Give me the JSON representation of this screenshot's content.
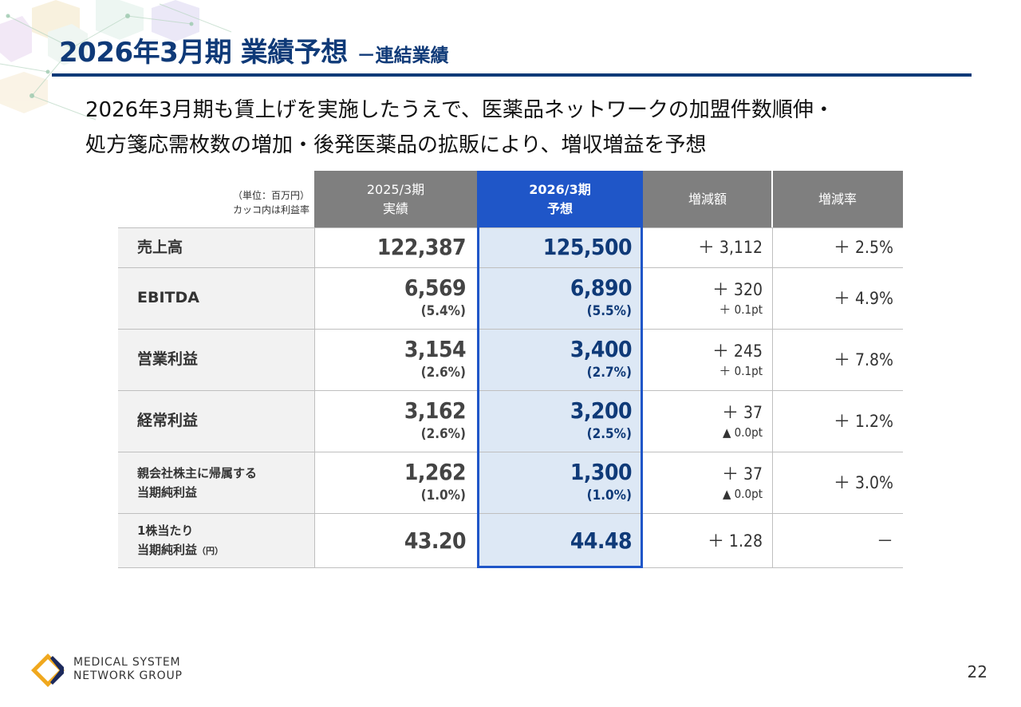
{
  "title": {
    "main": "2026年3月期 業績予想",
    "sub": "－連結業績"
  },
  "headline": [
    "2026年3月期も賃上げを実施したうえで、医薬品ネットワークの加盟件数順伸・",
    "処方箋応需枚数の増加・後発医薬品の拡販により、増収増益を予想"
  ],
  "table": {
    "unit_note": [
      "（単位：百万円）",
      "カッコ内は利益率"
    ],
    "headers": {
      "prev": [
        "2025/3期",
        "実績"
      ],
      "curr": [
        "2026/3期",
        "予想"
      ],
      "diff": "増減額",
      "rate": "増減率"
    },
    "rows": [
      {
        "label": [
          "売上高"
        ],
        "prev": "122,387",
        "prev_margin": "",
        "curr": "125,500",
        "curr_margin": "",
        "diff": "＋ 3,112",
        "diff_pt": "",
        "rate": "＋ 2.5%"
      },
      {
        "label": [
          "EBITDA"
        ],
        "prev": "6,569",
        "prev_margin": "(5.4%)",
        "curr": "6,890",
        "curr_margin": "(5.5%)",
        "diff": "＋ 320",
        "diff_pt": "＋ 0.1pt",
        "rate": "＋ 4.9%"
      },
      {
        "label": [
          "営業利益"
        ],
        "prev": "3,154",
        "prev_margin": "(2.6%)",
        "curr": "3,400",
        "curr_margin": "(2.7%)",
        "diff": "＋ 245",
        "diff_pt": "＋ 0.1pt",
        "rate": "＋ 7.8%"
      },
      {
        "label": [
          "経常利益"
        ],
        "prev": "3,162",
        "prev_margin": "(2.6%)",
        "curr": "3,200",
        "curr_margin": "(2.5%)",
        "diff": "＋ 37",
        "diff_pt": "▲ 0.0pt",
        "rate": "＋ 1.2%"
      },
      {
        "label": [
          "親会社株主に帰属する",
          "当期純利益"
        ],
        "prev": "1,262",
        "prev_margin": "(1.0%)",
        "curr": "1,300",
        "curr_margin": "(1.0%)",
        "diff": "＋ 37",
        "diff_pt": "▲ 0.0pt",
        "rate": "＋ 3.0%"
      },
      {
        "label": [
          "1株当たり",
          "当期純利益"
        ],
        "label_unit": "（円）",
        "prev": "43.20",
        "prev_margin": "",
        "curr": "44.48",
        "curr_margin": "",
        "diff": "＋ 1.28",
        "diff_pt": "",
        "rate": "－"
      }
    ]
  },
  "logo": {
    "line1": "MEDICAL SYSTEM",
    "line2": "NETWORK GROUP",
    "icon": "diamond-logo-icon"
  },
  "page_number": "22",
  "colors": {
    "title": "#0f3a78",
    "highlight": "#1f56c8",
    "highlight_bg": "#dde8f5",
    "header_bg": "#7f7f7f",
    "label_bg": "#f2f2f2",
    "logo_gold": "#f0a81e",
    "logo_navy": "#1d2a5c"
  }
}
